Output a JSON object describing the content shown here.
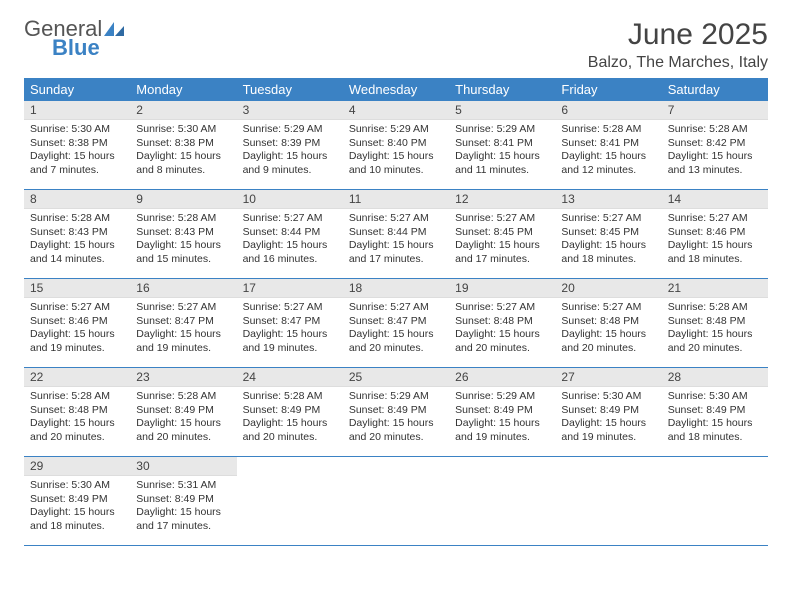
{
  "logo": {
    "text1": "General",
    "text2": "Blue"
  },
  "title": "June 2025",
  "location": "Balzo, The Marches, Italy",
  "colors": {
    "header_bg": "#3b82c4",
    "header_text": "#ffffff",
    "daynum_bg": "#e8e8e8",
    "week_border": "#3b82c4",
    "logo_gray": "#555555",
    "logo_blue": "#3b82c4",
    "text": "#333333"
  },
  "weekdays": [
    "Sunday",
    "Monday",
    "Tuesday",
    "Wednesday",
    "Thursday",
    "Friday",
    "Saturday"
  ],
  "weeks": [
    [
      {
        "n": "1",
        "sunrise": "Sunrise: 5:30 AM",
        "sunset": "Sunset: 8:38 PM",
        "daylight": "Daylight: 15 hours and 7 minutes."
      },
      {
        "n": "2",
        "sunrise": "Sunrise: 5:30 AM",
        "sunset": "Sunset: 8:38 PM",
        "daylight": "Daylight: 15 hours and 8 minutes."
      },
      {
        "n": "3",
        "sunrise": "Sunrise: 5:29 AM",
        "sunset": "Sunset: 8:39 PM",
        "daylight": "Daylight: 15 hours and 9 minutes."
      },
      {
        "n": "4",
        "sunrise": "Sunrise: 5:29 AM",
        "sunset": "Sunset: 8:40 PM",
        "daylight": "Daylight: 15 hours and 10 minutes."
      },
      {
        "n": "5",
        "sunrise": "Sunrise: 5:29 AM",
        "sunset": "Sunset: 8:41 PM",
        "daylight": "Daylight: 15 hours and 11 minutes."
      },
      {
        "n": "6",
        "sunrise": "Sunrise: 5:28 AM",
        "sunset": "Sunset: 8:41 PM",
        "daylight": "Daylight: 15 hours and 12 minutes."
      },
      {
        "n": "7",
        "sunrise": "Sunrise: 5:28 AM",
        "sunset": "Sunset: 8:42 PM",
        "daylight": "Daylight: 15 hours and 13 minutes."
      }
    ],
    [
      {
        "n": "8",
        "sunrise": "Sunrise: 5:28 AM",
        "sunset": "Sunset: 8:43 PM",
        "daylight": "Daylight: 15 hours and 14 minutes."
      },
      {
        "n": "9",
        "sunrise": "Sunrise: 5:28 AM",
        "sunset": "Sunset: 8:43 PM",
        "daylight": "Daylight: 15 hours and 15 minutes."
      },
      {
        "n": "10",
        "sunrise": "Sunrise: 5:27 AM",
        "sunset": "Sunset: 8:44 PM",
        "daylight": "Daylight: 15 hours and 16 minutes."
      },
      {
        "n": "11",
        "sunrise": "Sunrise: 5:27 AM",
        "sunset": "Sunset: 8:44 PM",
        "daylight": "Daylight: 15 hours and 17 minutes."
      },
      {
        "n": "12",
        "sunrise": "Sunrise: 5:27 AM",
        "sunset": "Sunset: 8:45 PM",
        "daylight": "Daylight: 15 hours and 17 minutes."
      },
      {
        "n": "13",
        "sunrise": "Sunrise: 5:27 AM",
        "sunset": "Sunset: 8:45 PM",
        "daylight": "Daylight: 15 hours and 18 minutes."
      },
      {
        "n": "14",
        "sunrise": "Sunrise: 5:27 AM",
        "sunset": "Sunset: 8:46 PM",
        "daylight": "Daylight: 15 hours and 18 minutes."
      }
    ],
    [
      {
        "n": "15",
        "sunrise": "Sunrise: 5:27 AM",
        "sunset": "Sunset: 8:46 PM",
        "daylight": "Daylight: 15 hours and 19 minutes."
      },
      {
        "n": "16",
        "sunrise": "Sunrise: 5:27 AM",
        "sunset": "Sunset: 8:47 PM",
        "daylight": "Daylight: 15 hours and 19 minutes."
      },
      {
        "n": "17",
        "sunrise": "Sunrise: 5:27 AM",
        "sunset": "Sunset: 8:47 PM",
        "daylight": "Daylight: 15 hours and 19 minutes."
      },
      {
        "n": "18",
        "sunrise": "Sunrise: 5:27 AM",
        "sunset": "Sunset: 8:47 PM",
        "daylight": "Daylight: 15 hours and 20 minutes."
      },
      {
        "n": "19",
        "sunrise": "Sunrise: 5:27 AM",
        "sunset": "Sunset: 8:48 PM",
        "daylight": "Daylight: 15 hours and 20 minutes."
      },
      {
        "n": "20",
        "sunrise": "Sunrise: 5:27 AM",
        "sunset": "Sunset: 8:48 PM",
        "daylight": "Daylight: 15 hours and 20 minutes."
      },
      {
        "n": "21",
        "sunrise": "Sunrise: 5:28 AM",
        "sunset": "Sunset: 8:48 PM",
        "daylight": "Daylight: 15 hours and 20 minutes."
      }
    ],
    [
      {
        "n": "22",
        "sunrise": "Sunrise: 5:28 AM",
        "sunset": "Sunset: 8:48 PM",
        "daylight": "Daylight: 15 hours and 20 minutes."
      },
      {
        "n": "23",
        "sunrise": "Sunrise: 5:28 AM",
        "sunset": "Sunset: 8:49 PM",
        "daylight": "Daylight: 15 hours and 20 minutes."
      },
      {
        "n": "24",
        "sunrise": "Sunrise: 5:28 AM",
        "sunset": "Sunset: 8:49 PM",
        "daylight": "Daylight: 15 hours and 20 minutes."
      },
      {
        "n": "25",
        "sunrise": "Sunrise: 5:29 AM",
        "sunset": "Sunset: 8:49 PM",
        "daylight": "Daylight: 15 hours and 20 minutes."
      },
      {
        "n": "26",
        "sunrise": "Sunrise: 5:29 AM",
        "sunset": "Sunset: 8:49 PM",
        "daylight": "Daylight: 15 hours and 19 minutes."
      },
      {
        "n": "27",
        "sunrise": "Sunrise: 5:30 AM",
        "sunset": "Sunset: 8:49 PM",
        "daylight": "Daylight: 15 hours and 19 minutes."
      },
      {
        "n": "28",
        "sunrise": "Sunrise: 5:30 AM",
        "sunset": "Sunset: 8:49 PM",
        "daylight": "Daylight: 15 hours and 18 minutes."
      }
    ],
    [
      {
        "n": "29",
        "sunrise": "Sunrise: 5:30 AM",
        "sunset": "Sunset: 8:49 PM",
        "daylight": "Daylight: 15 hours and 18 minutes."
      },
      {
        "n": "30",
        "sunrise": "Sunrise: 5:31 AM",
        "sunset": "Sunset: 8:49 PM",
        "daylight": "Daylight: 15 hours and 17 minutes."
      },
      null,
      null,
      null,
      null,
      null
    ]
  ]
}
